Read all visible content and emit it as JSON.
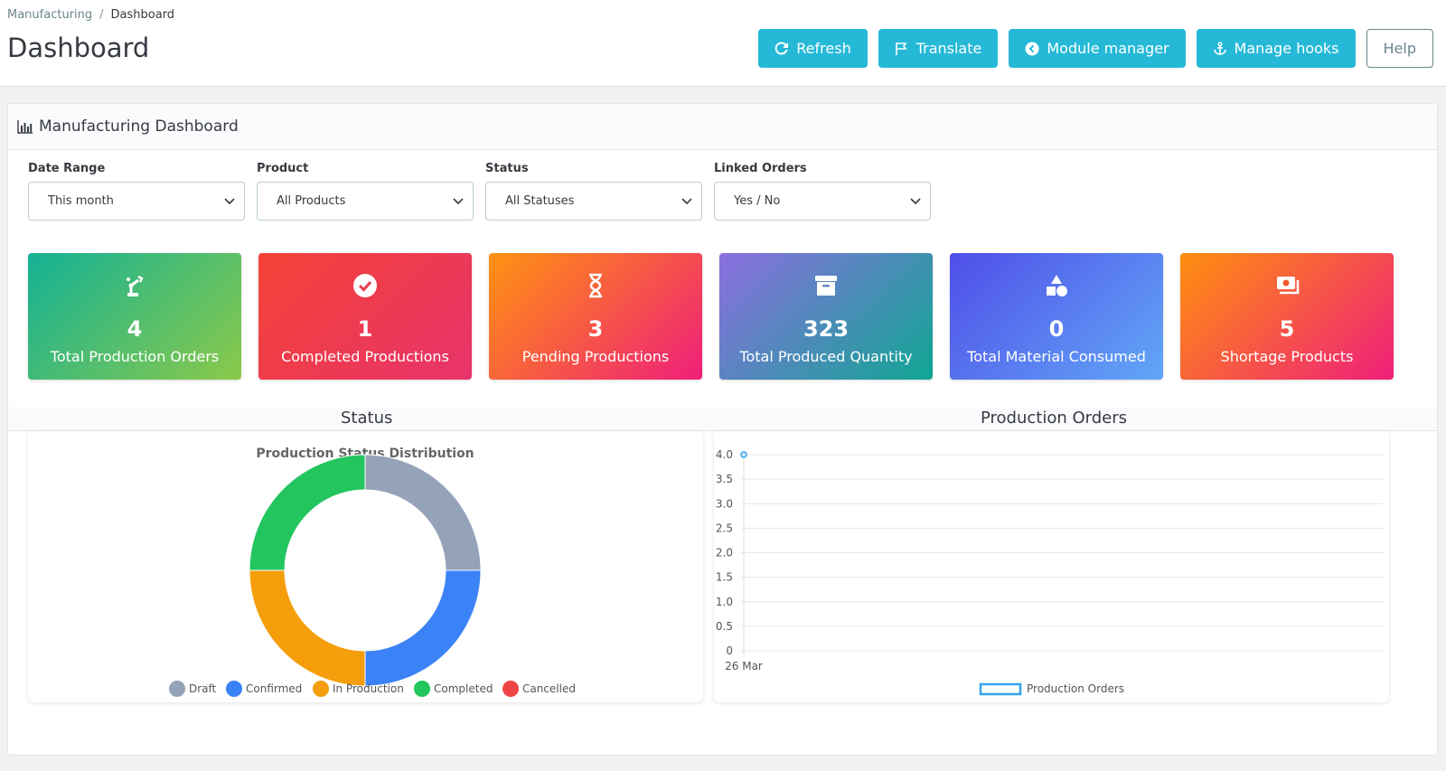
{
  "breadcrumb": {
    "parent": "Manufacturing",
    "separator": "/",
    "current": "Dashboard"
  },
  "page_title": "Dashboard",
  "toolbar": {
    "refresh": "Refresh",
    "translate": "Translate",
    "module_manager": "Module manager",
    "manage_hooks": "Manage hooks",
    "help": "Help"
  },
  "panel": {
    "title": "Manufacturing Dashboard"
  },
  "filters": {
    "date_range": {
      "label": "Date Range",
      "value": "This month"
    },
    "product": {
      "label": "Product",
      "value": "All Products"
    },
    "status": {
      "label": "Status",
      "value": "All Statuses"
    },
    "linked_orders": {
      "label": "Linked Orders",
      "value": "Yes / No"
    }
  },
  "cards": [
    {
      "value": "4",
      "label": "Total Production Orders",
      "icon": "robot-arm-icon"
    },
    {
      "value": "1",
      "label": "Completed Productions",
      "icon": "check-circle-icon"
    },
    {
      "value": "3",
      "label": "Pending Productions",
      "icon": "hourglass-icon"
    },
    {
      "value": "323",
      "label": "Total Produced Quantity",
      "icon": "archive-icon"
    },
    {
      "value": "0",
      "label": "Total Material Consumed",
      "icon": "shapes-icon"
    },
    {
      "value": "5",
      "label": "Shortage Products",
      "icon": "money-bill-icon"
    }
  ],
  "sections": {
    "status": "Status",
    "production_orders": "Production Orders"
  },
  "chart_data": [
    {
      "type": "pie",
      "title": "Production Status Distribution",
      "categories": [
        "Draft",
        "Confirmed",
        "In Production",
        "Completed",
        "Cancelled"
      ],
      "values": [
        1,
        1,
        1,
        1,
        0
      ],
      "colors": [
        "#94a3b8",
        "#3b82f6",
        "#f59e0b",
        "#22c55e",
        "#ef4444"
      ],
      "legend": "bottom"
    },
    {
      "type": "line",
      "x": [
        "26 Mar"
      ],
      "series": [
        {
          "name": "Production Orders",
          "values": [
            4
          ],
          "color": "#36a2eb"
        }
      ],
      "ylim": [
        0,
        4
      ],
      "yticks": [
        "0",
        "0.5",
        "1.0",
        "1.5",
        "2.0",
        "2.5",
        "3.0",
        "3.5",
        "4.0"
      ],
      "grid": true,
      "legend": "bottom"
    }
  ]
}
